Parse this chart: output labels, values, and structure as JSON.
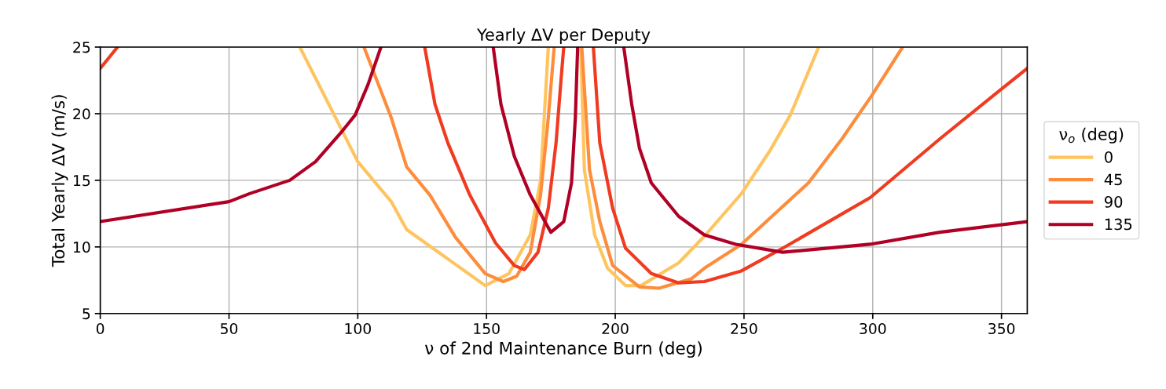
{
  "chart_data": {
    "type": "line",
    "title": "Yearly ΔV per Deputy",
    "xlabel": "ν of 2nd Maintenance Burn (deg)",
    "ylabel": "Total Yearly ΔV (m/s)",
    "legend_title": "ν$_{o}$ (deg)",
    "xlim": [
      0,
      360
    ],
    "ylim": [
      5,
      25
    ],
    "xticks": [
      0,
      50,
      100,
      150,
      200,
      250,
      300,
      350
    ],
    "yticks": [
      5,
      10,
      15,
      20,
      25
    ],
    "grid": true,
    "legend": "right",
    "line_style": "solid",
    "marker": "none",
    "series": [
      {
        "name": "0",
        "color": "#fec460",
        "x": [
          77.5,
          100,
          113,
          119,
          149.5,
          158.7,
          167,
          171,
          173,
          174,
          180,
          186.6,
          188,
          192,
          197,
          204,
          210,
          224.6,
          234.6,
          249,
          260,
          268,
          279
        ],
        "values": [
          25,
          16.4,
          13.4,
          11.3,
          7.1,
          8.0,
          10.9,
          15,
          21.7,
          25,
          null,
          25,
          15.8,
          10.9,
          8.4,
          7.1,
          7.1,
          8.8,
          10.8,
          14,
          17.2,
          19.9,
          25
        ]
      },
      {
        "name": "45",
        "color": "#fd8d3c",
        "x": [
          102.4,
          113,
          119,
          128,
          138,
          149.5,
          156.5,
          161.7,
          167,
          171,
          174,
          176.3,
          180,
          187,
          190,
          194,
          199,
          209.4,
          217,
          229.5,
          234.6,
          249,
          275,
          288,
          299.4,
          311.6
        ],
        "values": [
          25,
          19.7,
          16,
          13.9,
          10.7,
          8.0,
          7.4,
          7.8,
          9.6,
          13.9,
          19.7,
          25,
          null,
          25,
          15.8,
          11.9,
          8.6,
          7.0,
          6.9,
          7.6,
          8.4,
          10.2,
          14.8,
          18.1,
          21.3,
          25
        ]
      },
      {
        "name": "90",
        "color": "#f03b20",
        "x": [
          0,
          6.7,
          60,
          126,
          130,
          135,
          143.5,
          153.5,
          160.8,
          164.7,
          170,
          174,
          177,
          179,
          180,
          185,
          191.5,
          194,
          199,
          204,
          214,
          224.6,
          234.6,
          249,
          265,
          299,
          326,
          349,
          360
        ],
        "values": [
          23.4,
          25,
          null,
          25,
          20.7,
          17.8,
          13.9,
          10.3,
          8.6,
          8.3,
          9.6,
          12.9,
          17.8,
          22.7,
          25,
          null,
          25,
          17.8,
          12.9,
          9.9,
          8.0,
          7.3,
          7.4,
          8.2,
          9.9,
          13.7,
          18.1,
          21.7,
          23.4
        ]
      },
      {
        "name": "135",
        "color": "#b10026",
        "x": [
          0,
          50,
          58,
          73.6,
          83.6,
          94,
          99,
          104,
          109,
          130,
          152.6,
          155.6,
          160.8,
          167,
          175,
          180,
          183,
          184.5,
          185.4,
          195,
          203.3,
          206.4,
          209.4,
          214,
          224.6,
          234.6,
          246.8,
          265,
          299,
          326,
          360
        ],
        "values": [
          11.9,
          13.4,
          14.0,
          15.0,
          16.4,
          18.7,
          19.9,
          22.2,
          25,
          null,
          25,
          20.7,
          16.8,
          13.9,
          11.1,
          11.9,
          14.8,
          19.7,
          25,
          null,
          25,
          20.7,
          17.4,
          14.8,
          12.3,
          10.9,
          10.2,
          9.6,
          10.2,
          11.1,
          11.9
        ]
      }
    ]
  }
}
